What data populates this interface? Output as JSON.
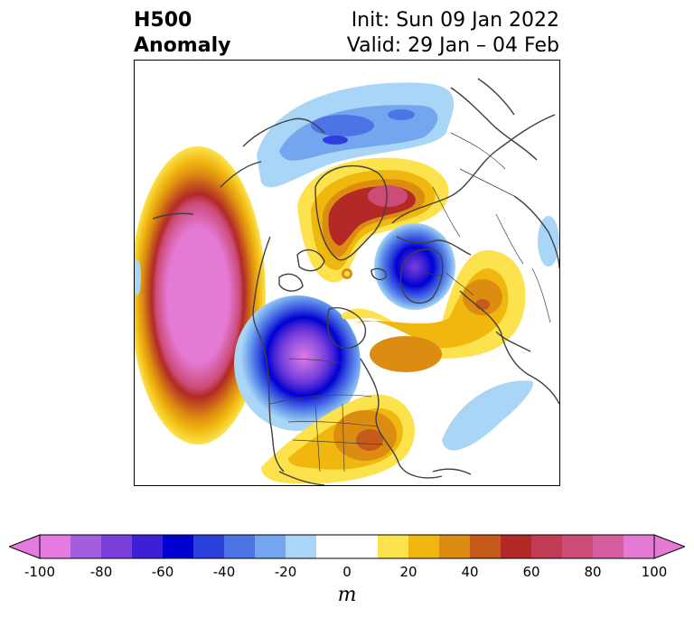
{
  "title": {
    "left_line1": "H500",
    "left_line2": "Anomaly",
    "right_line1": "Init: Sun 09 Jan 2022",
    "right_line2": "Valid: 29 Jan – 04 Feb"
  },
  "colorbar": {
    "levels": [
      -100,
      -90,
      -80,
      -70,
      -60,
      -50,
      -40,
      -30,
      -20,
      -10,
      10,
      20,
      30,
      40,
      50,
      60,
      70,
      80,
      90,
      100
    ],
    "colors": [
      "#e57ae0",
      "#a35ee0",
      "#7a3fdb",
      "#3d1fd6",
      "#0000d1",
      "#2b3fdc",
      "#4d74e5",
      "#74a6ef",
      "#a9d6f6",
      "#ffffff",
      "#fce34e",
      "#f0b70f",
      "#dd8c12",
      "#c65a1a",
      "#b22928",
      "#c23b55",
      "#cc4c77",
      "#d65ea0",
      "#e57ad4"
    ],
    "tick_labels": [
      "-100",
      "-80",
      "-60",
      "-40",
      "-20",
      "0",
      "20",
      "40",
      "60",
      "80",
      "100"
    ],
    "tick_values": [
      -100,
      -80,
      -60,
      -40,
      -20,
      0,
      20,
      40,
      60,
      80,
      100
    ],
    "unit": "m",
    "extend": "both"
  },
  "map": {
    "projection": "north-polar-stereographic",
    "field": "500 hPa geopotential height anomaly",
    "features": [
      "pink-high-northeast-pacific",
      "purple-low-western-canada",
      "blue-low-scandinavia",
      "red-high-greenland-arctic",
      "orange-high-eastern-us",
      "light-blue-low-atlantic",
      "blue-negative-siberia"
    ]
  }
}
